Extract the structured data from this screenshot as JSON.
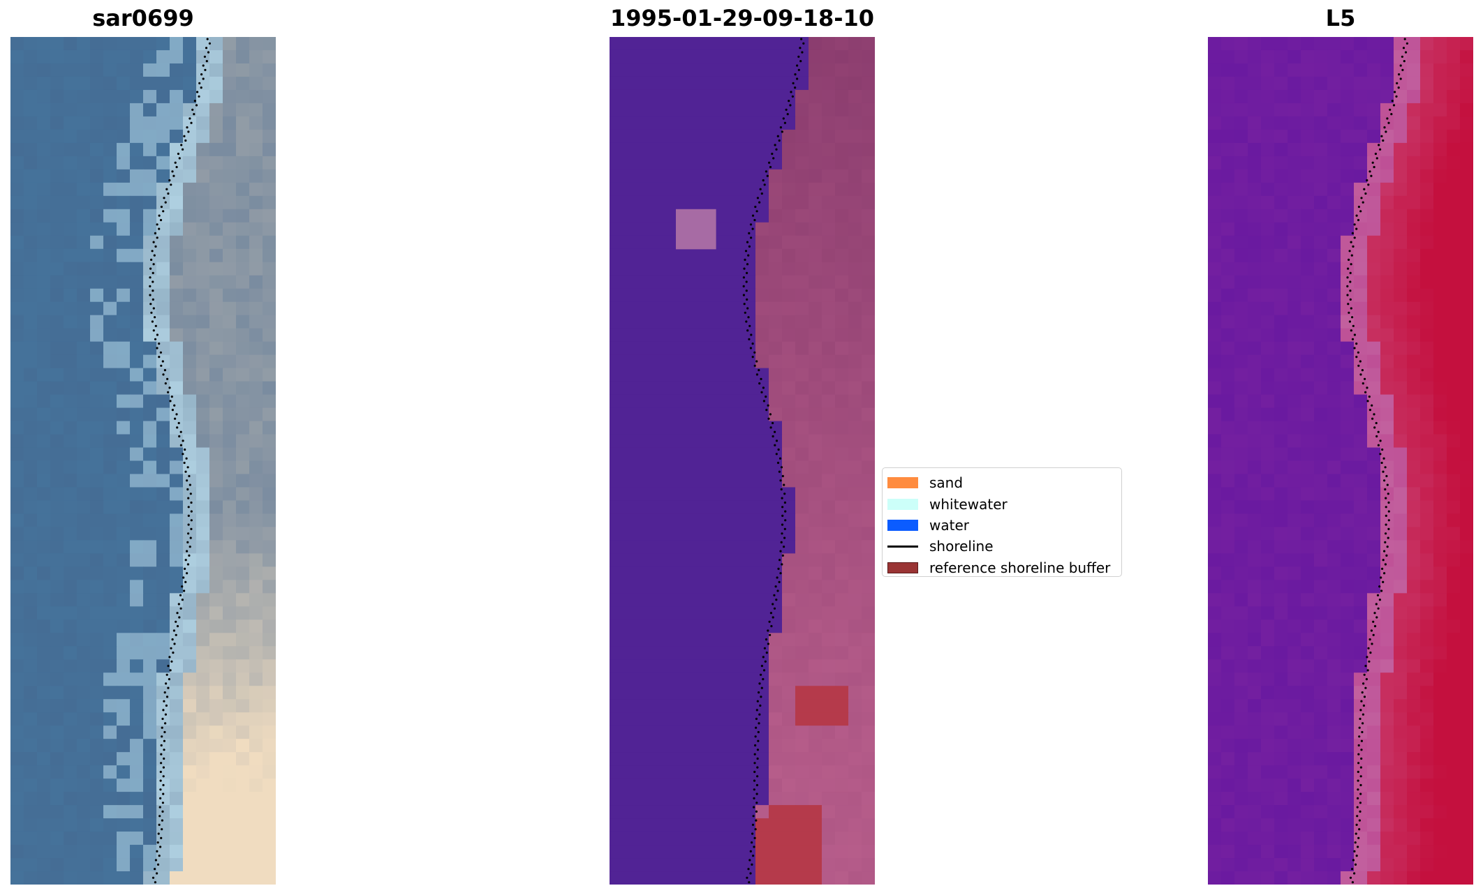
{
  "titles": {
    "left": "sar0699",
    "center": "1995-01-29-09-18-10",
    "right": "L5"
  },
  "legend": {
    "items": [
      {
        "label": "sand",
        "color": "#ff8c3f",
        "kind": "patch"
      },
      {
        "label": "whitewater",
        "color": "#ccfff9",
        "kind": "patch"
      },
      {
        "label": "water",
        "color": "#0b5cff",
        "kind": "patch"
      },
      {
        "label": "shoreline",
        "color": "#000000",
        "kind": "line"
      },
      {
        "label": "reference shoreline buffer",
        "color": "#9a3434",
        "kind": "patch"
      }
    ]
  },
  "colors": {
    "rgb_water": "#456d95",
    "rgb_sand": "#f0dcc0",
    "class_water": "#512395",
    "class_land": "#8a3c6e",
    "class_buffer": "#b53a4b",
    "index_low": "#6a1aa0",
    "index_high": "#c4103e"
  }
}
